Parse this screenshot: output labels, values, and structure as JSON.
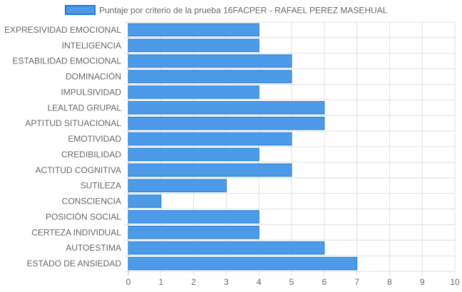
{
  "chart_data": {
    "type": "bar",
    "orientation": "horizontal",
    "title": "",
    "xlabel": "",
    "ylabel": "",
    "xlim": [
      0,
      10
    ],
    "x_ticks": [
      "0",
      "1",
      "2",
      "3",
      "4",
      "5",
      "6",
      "7",
      "8",
      "9",
      "10"
    ],
    "grid": true,
    "legend_position": "top",
    "categories": [
      "EXPRESIVIDAD EMOCIONAL",
      "INTELIGENCIA",
      "ESTABILIDAD EMOCIONAL",
      "DOMINACIÓN",
      "IMPULSIVIDAD",
      "LEALTAD GRUPAL",
      "APTITUD SITUACIONAL",
      "EMOTIVIDAD",
      "CREDIBILIDAD",
      "ACTITUD COGNITIVA",
      "SUTILEZA",
      "CONSCIENCIA",
      "POSICIÓN SOCIAL",
      "CERTEZA INDIVIDUAL",
      "AUTOESTIMA",
      "ESTADO DE ANSIEDAD"
    ],
    "series": [
      {
        "name": "Puntaje por criterio de la prueba 16FACPER - RAFAEL PEREZ MASEHUAL",
        "values": [
          4,
          4,
          5,
          5,
          4,
          6,
          6,
          5,
          4,
          5,
          3,
          1,
          4,
          4,
          6,
          7
        ],
        "color": "#4d9be8",
        "border_color": "#1e7ad6"
      }
    ],
    "grid_color": "#e0e0e0",
    "axis_color": "#bdbdbd",
    "label_color": "#666666"
  }
}
